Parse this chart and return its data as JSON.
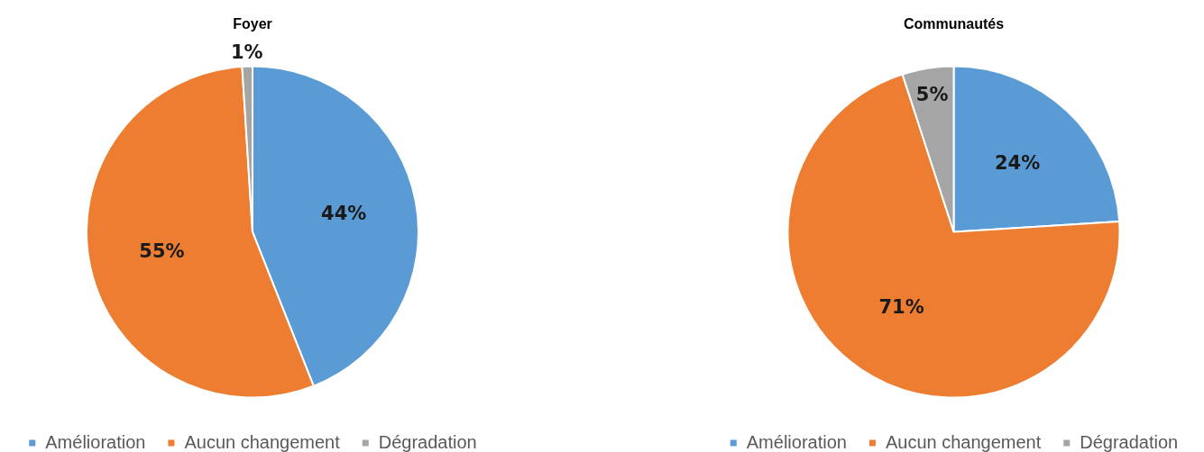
{
  "chart_data": [
    {
      "type": "pie",
      "title": "Foyer",
      "categories": [
        "Amélioration",
        "Aucun changement",
        "Dégradation"
      ],
      "values": [
        44,
        55,
        1
      ],
      "colors": [
        "#5b9bd5",
        "#ed7d31",
        "#a5a5a5"
      ],
      "value_labels": [
        "44%",
        "55%",
        "1%"
      ],
      "legend": "bottom"
    },
    {
      "type": "pie",
      "title": "Communautés",
      "categories": [
        "Amélioration",
        "Aucun changement",
        "Dégradation"
      ],
      "values": [
        24,
        71,
        5
      ],
      "colors": [
        "#5b9bd5",
        "#ed7d31",
        "#a5a5a5"
      ],
      "value_labels": [
        "24%",
        "71%",
        "5%"
      ],
      "legend": "bottom"
    }
  ]
}
